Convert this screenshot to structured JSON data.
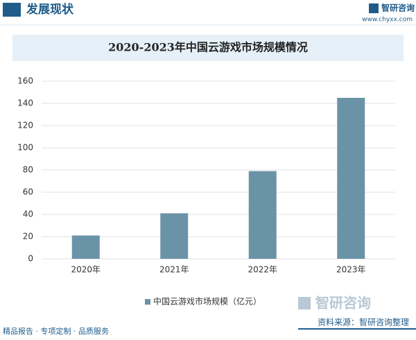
{
  "header": {
    "section": "发展现状",
    "brand": "智研咨询",
    "website": "www.chyxx.com"
  },
  "chart_data": {
    "type": "bar",
    "title": "2020-2023年中国云游戏市场规模情况",
    "categories": [
      "2020年",
      "2021年",
      "2022年",
      "2023年"
    ],
    "series": [
      {
        "name": "中国云游戏市场规模（亿元）",
        "color": "#6a93a8",
        "values": [
          21,
          41,
          79,
          145
        ]
      }
    ],
    "ylim": [
      0,
      160
    ],
    "yticks": [
      0,
      20,
      40,
      60,
      80,
      100,
      120,
      140,
      160
    ],
    "grid": true,
    "legend": "bottom"
  },
  "footer": {
    "slogan": "精品报告 · 专项定制 · 品质服务",
    "source": "资料来源：智研咨询整理",
    "logo": "智研咨询"
  }
}
